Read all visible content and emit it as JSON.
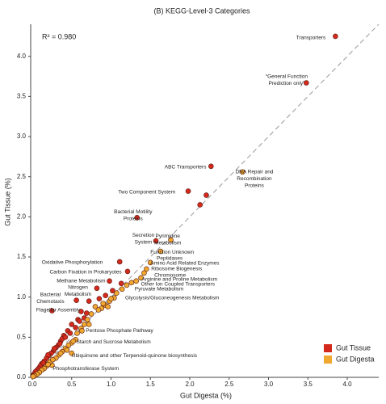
{
  "chart_data": {
    "type": "scatter",
    "title": "(B) KEGG-Level-3 Categories",
    "x_label": "Gut Digesta (%)",
    "y_label": "Gut Tissue (%)",
    "r2_label": "R² = 0.980",
    "xlim": [
      0,
      4.4
    ],
    "ylim": [
      0,
      4.4
    ],
    "xticks": [
      {
        "value": 0,
        "label": "0.0"
      },
      0.5,
      {
        "value": 1,
        "label": "1.0"
      },
      1.5,
      {
        "value": 2,
        "label": "2.0"
      },
      2.5,
      {
        "value": 3,
        "label": "3.0"
      },
      3.5,
      {
        "value": 4,
        "label": "4.0"
      }
    ],
    "yticks": [
      {
        "value": 0,
        "label": "0.0"
      },
      0.5,
      {
        "value": 1,
        "label": "1.0"
      },
      1.5,
      {
        "value": 2,
        "label": "2.0"
      },
      2.5,
      {
        "value": 3,
        "label": "3.0"
      },
      3.5,
      {
        "value": 4,
        "label": "4.0"
      }
    ],
    "legend_position": "lower right",
    "series": [
      {
        "name": "Gut Tissue",
        "color": "#d42a1e",
        "x": [
          3.85,
          3.48,
          2.27,
          1.98,
          2.21,
          2.13,
          1.33,
          1.57,
          1.11,
          1.21,
          0.98,
          0.82,
          0.56,
          0.25,
          1.13,
          1.02,
          0.93,
          0.85,
          0.72,
          0.62,
          0.66,
          0.58,
          0.5,
          0.45,
          0.4,
          0.36,
          0.33,
          0.3,
          0.27,
          0.24,
          0.21,
          0.18,
          0.15,
          0.12,
          0.1,
          0.08,
          0.06,
          0.04,
          0.02,
          0.01,
          0.55,
          0.48,
          0.38,
          0.28,
          0.2,
          0.14,
          0.35,
          0.42,
          0.69,
          0.6
        ],
        "y": [
          4.25,
          3.67,
          2.63,
          2.32,
          2.27,
          2.15,
          1.99,
          1.7,
          1.44,
          1.32,
          1.2,
          1.11,
          0.96,
          0.83,
          1.17,
          1.08,
          1.02,
          0.98,
          0.95,
          0.82,
          0.74,
          0.72,
          0.66,
          0.58,
          0.52,
          0.45,
          0.4,
          0.37,
          0.33,
          0.3,
          0.27,
          0.24,
          0.2,
          0.17,
          0.14,
          0.11,
          0.09,
          0.07,
          0.04,
          0.02,
          0.62,
          0.55,
          0.48,
          0.36,
          0.28,
          0.18,
          0.42,
          0.5,
          0.8,
          0.7
        ]
      },
      {
        "name": "Gut Digesta",
        "color": "#f0a830",
        "x": [
          2.67,
          1.76,
          1.63,
          1.5,
          1.45,
          1.42,
          1.38,
          1.32,
          1.26,
          1.2,
          1.14,
          1.07,
          1.04,
          0.98,
          0.93,
          0.88,
          0.8,
          0.75,
          0.7,
          0.66,
          0.62,
          0.57,
          0.55,
          0.5,
          0.46,
          0.5,
          0.42,
          0.38,
          0.34,
          0.3,
          0.25,
          0.22,
          0.18,
          0.15,
          0.12,
          0.09,
          0.06,
          0.03,
          0.01,
          0.44,
          0.36,
          0.26,
          0.2,
          0.84,
          0.9,
          1.0,
          0.96,
          0.72,
          0.63,
          0.52
        ],
        "y": [
          2.56,
          1.71,
          1.57,
          1.43,
          1.35,
          1.3,
          1.24,
          1.2,
          1.18,
          1.15,
          1.1,
          1.05,
          0.99,
          0.95,
          0.9,
          0.86,
          0.88,
          0.79,
          0.72,
          0.66,
          0.61,
          0.55,
          0.47,
          0.43,
          0.4,
          0.3,
          0.36,
          0.32,
          0.28,
          0.24,
          0.15,
          0.19,
          0.14,
          0.11,
          0.09,
          0.06,
          0.04,
          0.02,
          0.01,
          0.34,
          0.3,
          0.22,
          0.16,
          0.84,
          0.92,
          0.98,
          0.88,
          0.66,
          0.58,
          0.45
        ]
      }
    ],
    "annotations": [
      {
        "lines": [
          "Transporters"
        ],
        "x": 3.35,
        "y": 4.23
      },
      {
        "lines": [
          "“General Function",
          "Prediction only”"
        ],
        "x": 3.23,
        "y": 3.75
      },
      {
        "lines": [
          "ABC Transporters"
        ],
        "x": 1.68,
        "y": 2.62
      },
      {
        "lines": [
          "DNA Repair and",
          "Recombination",
          "Proteins"
        ],
        "x": 2.82,
        "y": 2.56
      },
      {
        "lines": [
          "Two Component System"
        ],
        "x": 1.09,
        "y": 2.31
      },
      {
        "lines": [
          "Bacterial Motility",
          "Proteins"
        ],
        "x": 1.28,
        "y": 2.06
      },
      {
        "lines": [
          "Secretion",
          "System"
        ],
        "x": 1.41,
        "y": 1.77
      },
      {
        "lines": [
          "Pyrimidine",
          "Metabolism"
        ],
        "x": 1.72,
        "y": 1.76
      },
      {
        "lines": [
          "Function Unknown"
        ],
        "x": 1.5,
        "y": 1.56
      },
      {
        "lines": [
          "Peptidases"
        ],
        "x": 1.58,
        "y": 1.48
      },
      {
        "lines": [
          "Amino Acid Related Enzymes"
        ],
        "x": 1.5,
        "y": 1.42
      },
      {
        "lines": [
          "Oxidative Phosphorylation"
        ],
        "x": 0.12,
        "y": 1.43
      },
      {
        "lines": [
          "Ribosome Biogenesis"
        ],
        "x": 1.51,
        "y": 1.35
      },
      {
        "lines": [
          "Carbon Fixation in Prokaryotes"
        ],
        "x": 0.22,
        "y": 1.31
      },
      {
        "lines": [
          "Chromosome"
        ],
        "x": 1.55,
        "y": 1.27
      },
      {
        "lines": [
          "Arginine and Proline Metabolism"
        ],
        "x": 1.39,
        "y": 1.22
      },
      {
        "lines": [
          "Methane Metabolism"
        ],
        "x": 0.31,
        "y": 1.2
      },
      {
        "lines": [
          "Other Ion Coupled Transporters"
        ],
        "x": 1.38,
        "y": 1.16
      },
      {
        "lines": [
          "Nitrogen",
          "Metabolism"
        ],
        "x": 0.58,
        "y": 1.12
      },
      {
        "lines": [
          "Pyruvate Metabolism"
        ],
        "x": 1.3,
        "y": 1.1
      },
      {
        "lines": [
          "Bacterial",
          "Chemotaxis"
        ],
        "x": 0.23,
        "y": 1.03
      },
      {
        "lines": [
          "Glycolysis/Gluconeogenesis Metabolism"
        ],
        "x": 1.18,
        "y": 0.99
      },
      {
        "lines": [
          "Flagellar Assembly"
        ],
        "x": 0.05,
        "y": 0.84
      },
      {
        "lines": [
          "Pentose Phosphate Pathway"
        ],
        "x": 0.68,
        "y": 0.58
      },
      {
        "lines": [
          "Starch and Sucrose Metabolism"
        ],
        "x": 0.56,
        "y": 0.44
      },
      {
        "lines": [
          "Ubiquinone and other Terpenoid-quinone biosynthesis"
        ],
        "x": 0.5,
        "y": 0.27
      },
      {
        "lines": [
          "Phosphotransferase System"
        ],
        "x": 0.26,
        "y": 0.11
      }
    ]
  }
}
